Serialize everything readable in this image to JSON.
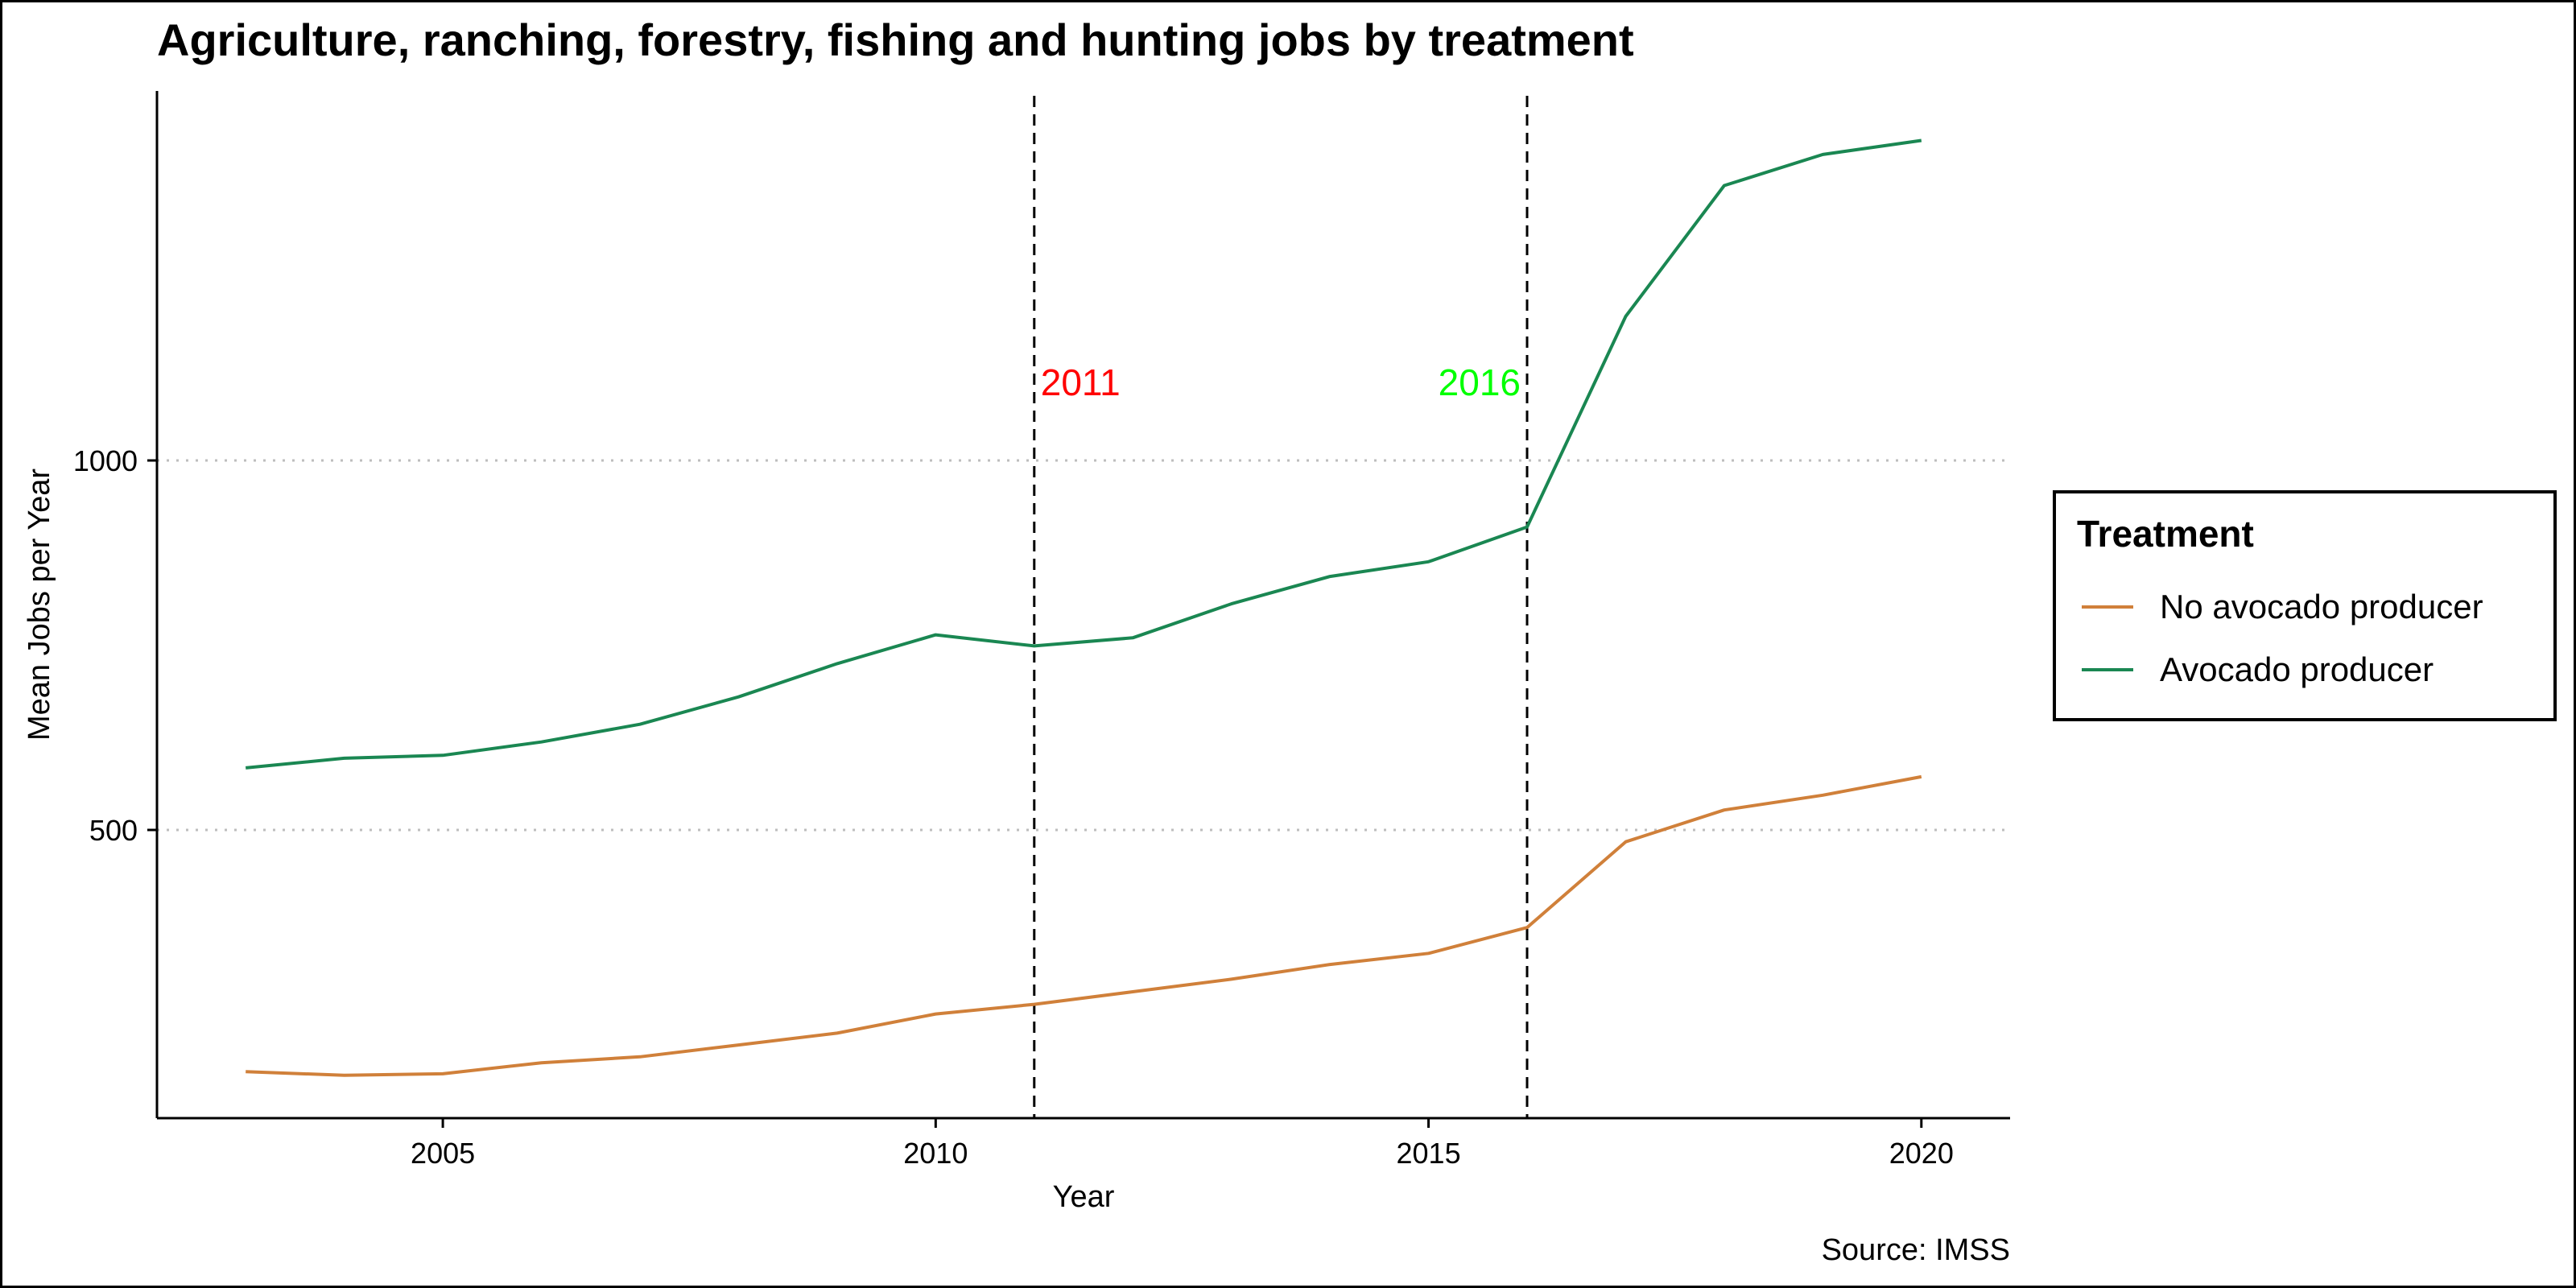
{
  "chart_data": {
    "type": "line",
    "title": "Agriculture, ranching, forestry, fishing and hunting jobs by treatment",
    "xlabel": "Year",
    "ylabel": "Mean Jobs per Year",
    "caption": "Source: IMSS",
    "x": [
      2003,
      2004,
      2005,
      2006,
      2007,
      2008,
      2009,
      2010,
      2011,
      2012,
      2013,
      2014,
      2015,
      2016,
      2017,
      2018,
      2019,
      2020
    ],
    "xlim": [
      2002.1,
      2020.9
    ],
    "ylim": [
      110,
      1500
    ],
    "x_ticks": [
      2005,
      2010,
      2015,
      2020
    ],
    "y_ticks": [
      500,
      1000
    ],
    "grid": "horizontal dotted at y ticks",
    "legend_placement": "right",
    "legend": {
      "title": "Treatment",
      "entries": [
        "No avocado producer",
        "Avocado producer"
      ]
    },
    "series": [
      {
        "name": "No avocado producer",
        "color": "#d0803a",
        "values": [
          173,
          168,
          170,
          185,
          193,
          209,
          225,
          251,
          264,
          281,
          298,
          318,
          333,
          368,
          484,
          527,
          547,
          572
        ]
      },
      {
        "name": "Avocado producer",
        "color": "#1a8752",
        "values": [
          584,
          597,
          601,
          619,
          643,
          680,
          725,
          764,
          749,
          760,
          806,
          843,
          863,
          910,
          1195,
          1372,
          1414,
          1433
        ]
      }
    ],
    "vlines": [
      {
        "x": 2011,
        "label": "2011",
        "color": "#ff0000"
      },
      {
        "x": 2016,
        "label": "2016",
        "color": "#00ff00"
      }
    ]
  }
}
